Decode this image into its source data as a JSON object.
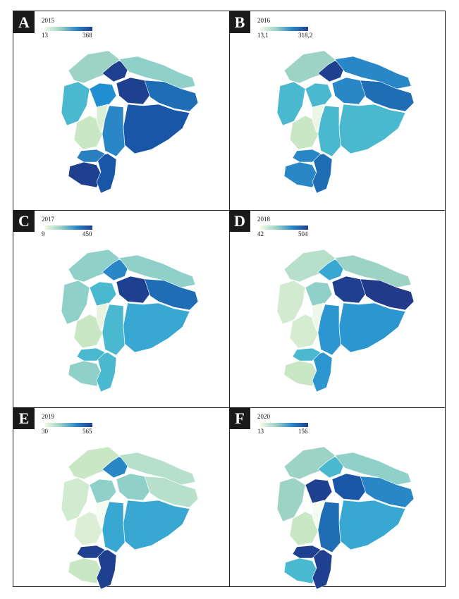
{
  "panels": [
    {
      "letter": "A",
      "year": "2015",
      "min": "13",
      "max": "368",
      "colors": {
        "northwest": "#9dd3c5",
        "north": "#1f3f8f",
        "northeast": "#8fd0c8",
        "center_west": "#4ab8cf",
        "center": "#1f8fcf",
        "core_dark": "#1f3f8f",
        "east": "#1e6db5",
        "southeast": "#1a56a8",
        "south_central": "#2a87c7",
        "coast": "#c9e7c4",
        "south_west": "#1f3f8f",
        "south": "#1a56a8",
        "southern_tip": "#2a7fc0",
        "interior": "#d9efd6"
      }
    },
    {
      "letter": "B",
      "year": "2016",
      "min": "13,1",
      "max": "318,2",
      "colors": {
        "northwest": "#9dd3c5",
        "north": "#1f3f8f",
        "northeast": "#2a87c7",
        "center_west": "#4ab8cf",
        "center": "#4ab8cf",
        "core_dark": "#2a87c7",
        "east": "#1e6db5",
        "southeast": "#4ab8cf",
        "south_central": "#4ab8cf",
        "coast": "#c9e7c4",
        "south_west": "#2a87c7",
        "south": "#1e6db5",
        "southern_tip": "#2a87c7",
        "interior": "#eaf6e6"
      }
    },
    {
      "letter": "C",
      "year": "2017",
      "min": "9",
      "max": "450",
      "colors": {
        "northwest": "#8fd0c8",
        "north": "#2a87c7",
        "northeast": "#8fd0c8",
        "center_west": "#8fd0c8",
        "center": "#4ab8cf",
        "core_dark": "#1f3f8f",
        "east": "#1e6db5",
        "southeast": "#38a8d3",
        "south_central": "#4ab8cf",
        "coast": "#c9e7c4",
        "south_west": "#8fd0c8",
        "south": "#4ab8cf",
        "southern_tip": "#4ab8cf",
        "interior": "#e8f4e0"
      }
    },
    {
      "letter": "D",
      "year": "2018",
      "min": "42",
      "max": "504",
      "colors": {
        "northwest": "#b6e0cc",
        "north": "#38a8d3",
        "northeast": "#9dd3c5",
        "center_west": "#d0ebcf",
        "center": "#8fd0c8",
        "core_dark": "#1f3f8f",
        "east": "#223a8a",
        "southeast": "#2b96cf",
        "south_central": "#2b96cf",
        "coast": "#d6ecd0",
        "south_west": "#c9e7c4",
        "south": "#2b96cf",
        "southern_tip": "#4ab8cf",
        "interior": "#eef8ea"
      }
    },
    {
      "letter": "E",
      "year": "2019",
      "min": "30",
      "max": "565",
      "colors": {
        "northwest": "#c9e7c4",
        "north": "#2a87c7",
        "northeast": "#b6e0cc",
        "center_west": "#d0ebcf",
        "center": "#8fd0c8",
        "core_dark": "#8fd0c8",
        "east": "#b6e0cc",
        "southeast": "#38a8d3",
        "south_central": "#38a8d3",
        "coast": "#dcefd6",
        "south_west": "#c9e7c4",
        "south": "#1f3f8f",
        "southern_tip": "#1f3f8f",
        "interior": "#f4fbf0"
      }
    },
    {
      "letter": "F",
      "year": "2020",
      "min": "13",
      "max": "156",
      "colors": {
        "northwest": "#9dd3c5",
        "north": "#4ab8cf",
        "northeast": "#8fd0c8",
        "center_west": "#9dd3c5",
        "center": "#1f3f8f",
        "core_dark": "#1a56a8",
        "east": "#2a87c7",
        "southeast": "#38a8d3",
        "south_central": "#1e6db5",
        "coast": "#c9e7c4",
        "south_west": "#4ab8cf",
        "south": "#1f3f8f",
        "southern_tip": "#1f3f8f",
        "interior": "#f4fbf0"
      }
    }
  ]
}
